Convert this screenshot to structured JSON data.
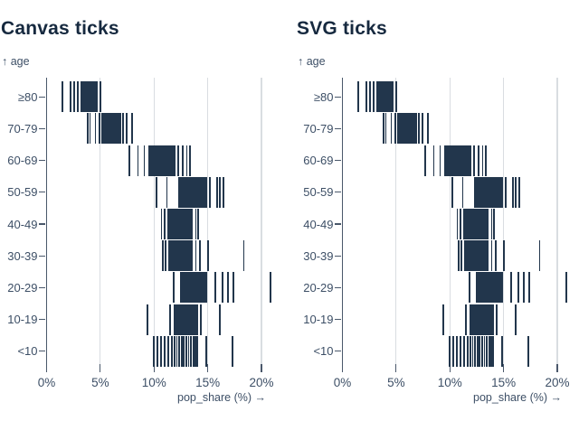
{
  "labels": {
    "y_axis": "↑ age",
    "x_axis": "pop_share (%) →"
  },
  "colors": {
    "title": "#16293f",
    "label": "#3d4f66",
    "grid": "#d9dde1",
    "axis": "#4a586b",
    "tick": "#22364c"
  },
  "chart_data": {
    "type": "scatter",
    "mark": "tick",
    "charts": [
      {
        "title": "Canvas ticks"
      },
      {
        "title": "SVG ticks"
      }
    ],
    "xlabel": "pop_share (%)",
    "ylabel": "age",
    "x_domain": [
      0,
      20
    ],
    "x_ticks": [
      "0%",
      "5%",
      "10%",
      "15%",
      "20%"
    ],
    "grid": true,
    "categories": [
      "≥80",
      "70-79",
      "60-69",
      "50-59",
      "40-49",
      "30-39",
      "20-29",
      "10-19",
      "<10"
    ],
    "series": [
      {
        "age": "≥80",
        "values": [
          1.5,
          2.2,
          2.6,
          2.9,
          3.2,
          3.32,
          3.44,
          3.56,
          3.68,
          3.8,
          3.92,
          4.04,
          4.16,
          4.28,
          4.4,
          4.52,
          4.65,
          5.0
        ]
      },
      {
        "age": "70-79",
        "values": [
          3.8,
          4.05,
          4.55,
          4.9,
          5.2,
          5.33,
          5.46,
          5.59,
          5.72,
          5.85,
          5.98,
          6.11,
          6.24,
          6.37,
          6.5,
          6.63,
          6.76,
          6.9,
          7.1,
          7.45,
          7.95
        ]
      },
      {
        "age": "60-69",
        "values": [
          7.7,
          8.5,
          9.1,
          9.55,
          9.7,
          9.85,
          10.0,
          10.15,
          10.3,
          10.45,
          10.6,
          10.75,
          10.9,
          11.05,
          11.2,
          11.35,
          11.5,
          11.65,
          11.8,
          11.95,
          12.25,
          12.65,
          13.05,
          13.35
        ]
      },
      {
        "age": "50-59",
        "values": [
          10.2,
          11.2,
          12.3,
          12.44,
          12.58,
          12.72,
          12.86,
          13.0,
          13.14,
          13.28,
          13.42,
          13.56,
          13.7,
          13.84,
          13.98,
          14.12,
          14.26,
          14.4,
          14.54,
          14.68,
          14.85,
          15.2,
          15.85,
          16.15,
          16.45
        ]
      },
      {
        "age": "40-49",
        "values": [
          10.7,
          11.0,
          11.3,
          11.44,
          11.58,
          11.72,
          11.86,
          12.0,
          12.14,
          12.28,
          12.42,
          12.56,
          12.7,
          12.84,
          12.98,
          13.12,
          13.26,
          13.4,
          13.55,
          13.9,
          14.1
        ]
      },
      {
        "age": "30-39",
        "values": [
          10.8,
          11.1,
          11.4,
          11.54,
          11.68,
          11.82,
          11.96,
          12.1,
          12.24,
          12.38,
          12.52,
          12.66,
          12.8,
          12.94,
          13.08,
          13.22,
          13.36,
          13.5,
          13.9,
          14.3,
          15.0,
          18.35
        ]
      },
      {
        "age": "20-29",
        "values": [
          11.85,
          12.5,
          12.64,
          12.78,
          12.92,
          13.06,
          13.2,
          13.34,
          13.48,
          13.62,
          13.76,
          13.9,
          14.04,
          14.18,
          14.32,
          14.46,
          14.6,
          14.74,
          14.88,
          15.7,
          16.4,
          16.9,
          17.4,
          20.85
        ]
      },
      {
        "age": "10-19",
        "values": [
          9.4,
          11.5,
          11.9,
          12.04,
          12.18,
          12.32,
          12.46,
          12.6,
          12.74,
          12.88,
          13.02,
          13.16,
          13.3,
          13.44,
          13.58,
          13.72,
          13.86,
          14.0,
          14.35,
          16.1
        ]
      },
      {
        "age": "<10",
        "values": [
          10.0,
          10.32,
          10.65,
          10.98,
          11.3,
          11.65,
          11.9,
          12.12,
          12.34,
          12.56,
          12.78,
          13.0,
          13.22,
          13.44,
          13.66,
          13.88,
          14.05,
          14.85,
          17.3
        ]
      }
    ]
  }
}
